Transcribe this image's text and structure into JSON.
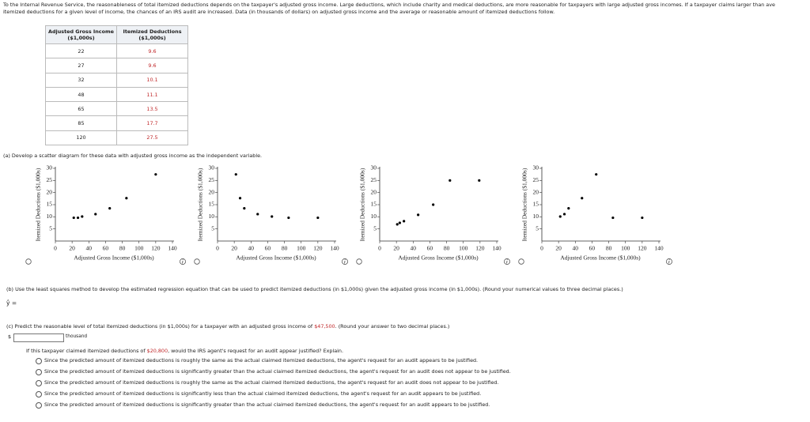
{
  "intro": [
    "To the Internal Revenue Service, the reasonableness of total itemized deductions depends on the taxpayer's adjusted gross income. Large deductions, which include charity and medical deductions, are more reasonable for taxpayers with large adjusted gross incomes. If a taxpayer claims larger than ave",
    "itemized deductions for a given level of income, the chances of an IRS audit are increased. Data (in thousands of dollars) on adjusted gross income and the average or reasonable amount of itemized deductions follow."
  ],
  "table": {
    "headers": [
      [
        "Adjusted Gross Income",
        "($1,000s)"
      ],
      [
        "Itemized Deductions",
        "($1,000s)"
      ]
    ],
    "rows": [
      [
        22,
        9.6
      ],
      [
        27,
        9.6
      ],
      [
        32,
        10.1
      ],
      [
        48,
        11.1
      ],
      [
        65,
        13.5
      ],
      [
        85,
        17.7
      ],
      [
        120,
        27.5
      ]
    ]
  },
  "part_a": "(a)  Develop a scatter diagram for these data with adjusted gross income as the independent variable.",
  "chart_data": [
    {
      "type": "scatter",
      "x": [
        22,
        27,
        32,
        48,
        65,
        85,
        120
      ],
      "values": [
        9.6,
        9.6,
        10.1,
        11.1,
        13.5,
        17.7,
        27.5
      ],
      "color": "#000000",
      "x_label": "Adjusted Gross Income ($1,000s)",
      "y_label": "Itemized Deductions ($1,000s)",
      "xlim": [
        0,
        140
      ],
      "ylim": [
        0,
        30
      ],
      "xticks": [
        0,
        20,
        40,
        60,
        80,
        100,
        120,
        140
      ],
      "yticks": [
        5,
        10,
        15,
        20,
        25,
        30
      ]
    },
    {
      "type": "scatter",
      "x": [
        22,
        27,
        32,
        48,
        65,
        85,
        120
      ],
      "values": [
        27.5,
        17.7,
        13.5,
        11.1,
        10.1,
        9.6,
        9.6
      ],
      "color": "#000000",
      "x_label": "Adjusted Gross Income ($1,000s)",
      "y_label": "Itemized Deductions ($1,000s)",
      "xlim": [
        0,
        140
      ],
      "ylim": [
        0,
        30
      ],
      "xticks": [
        0,
        20,
        40,
        60,
        80,
        100,
        120,
        140
      ],
      "yticks": [
        5,
        10,
        15,
        20,
        25,
        30
      ]
    },
    {
      "type": "scatter",
      "x": [
        21,
        24,
        29,
        46,
        64,
        84,
        119
      ],
      "values": [
        6.9,
        7.5,
        8.2,
        10.8,
        15,
        25,
        25
      ],
      "color": "#000000",
      "x_label": "Adjusted Gross Income ($1,000s)",
      "y_label": "Itemized Deductions ($1,000s)",
      "xlim": [
        0,
        140
      ],
      "ylim": [
        0,
        30
      ],
      "xticks": [
        0,
        20,
        40,
        60,
        80,
        100,
        120,
        140
      ],
      "yticks": [
        5,
        10,
        15,
        20,
        25,
        30
      ]
    },
    {
      "type": "scatter",
      "x": [
        22,
        27,
        32,
        48,
        65,
        85,
        120
      ],
      "values": [
        10.1,
        11.1,
        13.5,
        17.7,
        27.5,
        9.6,
        9.6
      ],
      "color": "#000000",
      "x_label": "Adjusted Gross Income ($1,000s)",
      "y_label": "Itemized Deductions ($1,000s)",
      "xlim": [
        0,
        140
      ],
      "ylim": [
        0,
        30
      ],
      "xticks": [
        0,
        20,
        40,
        60,
        80,
        100,
        120,
        140
      ],
      "yticks": [
        5,
        10,
        15,
        20,
        25,
        30
      ]
    }
  ],
  "part_b": "(b)  Use the least squares method to develop the estimated regression equation that can be used to predict itemized deductions (in $1,000s) given the adjusted gross income (in $1,000s). (Round your numerical values to three decimal places.)",
  "yhat": "ŷ =",
  "part_c": {
    "prompt": [
      "(c)  Predict the reasonable level of total itemized deductions (in $1,000s) for a taxpayer with an adjusted gross income of ",
      "$47,500",
      ". (Round your answer to two decimal places.)"
    ],
    "currency": "$",
    "unit": "thousand",
    "question": [
      "If this taxpayer claimed itemized deductions of ",
      "$20,800",
      ", would the IRS agent's request for an audit appear justified? Explain."
    ],
    "options": [
      "Since the predicted amount of itemized deductions is roughly the same as the actual claimed itemized deductions, the agent's request for an audit appears to be justified.",
      "Since the predicted amount of itemized deductions is significantly greater than the actual claimed itemized deductions, the agent's request for an audit does not appear to be justified.",
      "Since the predicted amount of itemized deductions is roughly the same as the actual claimed itemized deductions, the agent's request for an audit does not appear to be justified.",
      "Since the predicted amount of itemized deductions is significantly less than the actual claimed itemized deductions, the agent's request for an audit appears to be justified.",
      "Since the predicted amount of itemized deductions is significantly greater than the actual claimed itemized deductions, the agent's request for an audit appears to be justified."
    ]
  }
}
